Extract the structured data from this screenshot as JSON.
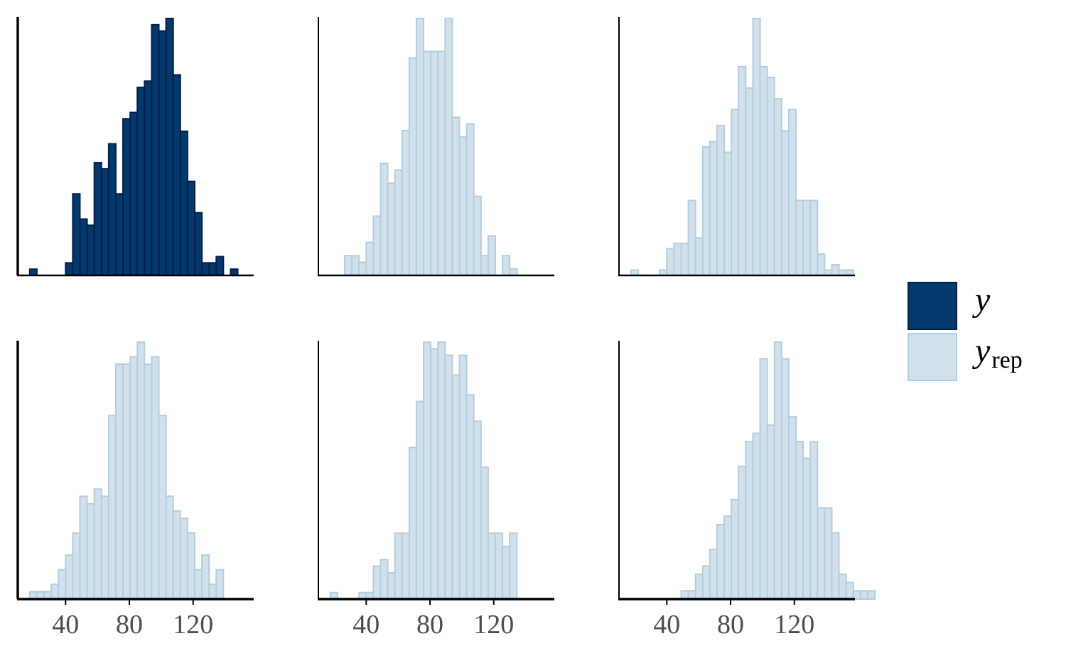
{
  "chart_data": {
    "type": "histogram-grid",
    "title": "",
    "xlabel": "",
    "ylabel": "",
    "xlim": [
      10,
      158
    ],
    "x_ticks": [
      40,
      80,
      120
    ],
    "x_tick_labels": [
      "40",
      "80",
      "120"
    ],
    "bin_width": 4.5,
    "bin_start": 17.5,
    "grid": false,
    "legend_position": "right",
    "legend": [
      {
        "symbol": "y",
        "subscript": "",
        "fill": "#03396c",
        "stroke": "#011f4b"
      },
      {
        "symbol": "y",
        "subscript": "rep",
        "fill": "#d1e1ec",
        "stroke": "#b3cde0"
      }
    ],
    "panels": [
      {
        "series": "y",
        "show_x_tick_labels": false,
        "counts": [
          1,
          0,
          0,
          0,
          0,
          2,
          13,
          9,
          8,
          18,
          17,
          21,
          13,
          25,
          26,
          30,
          31,
          40,
          39,
          41,
          32,
          23,
          15,
          10,
          2,
          2,
          3,
          0,
          1
        ]
      },
      {
        "series": "y_rep",
        "show_x_tick_labels": false,
        "counts": [
          0,
          0,
          3,
          3,
          2,
          5,
          9,
          17,
          14,
          16,
          22,
          33,
          39,
          34,
          34,
          34,
          39,
          24,
          21,
          23,
          12,
          3,
          6,
          0,
          3,
          1,
          0,
          0,
          0
        ]
      },
      {
        "series": "y_rep",
        "show_x_tick_labels": false,
        "counts": [
          1,
          0,
          0,
          0,
          1,
          5,
          6,
          6,
          14,
          7,
          24,
          25,
          28,
          23,
          31,
          39,
          35,
          48,
          39,
          37,
          33,
          27,
          31,
          14,
          14,
          14,
          4,
          1,
          2,
          1,
          1
        ]
      },
      {
        "series": "y_rep",
        "show_x_tick_labels": true,
        "counts": [
          1,
          1,
          1,
          2,
          4,
          6,
          9,
          14,
          13,
          15,
          14,
          25,
          32,
          32,
          33,
          35,
          32,
          33,
          25,
          14,
          12,
          11,
          9,
          4,
          6,
          2,
          4
        ]
      },
      {
        "series": "y_rep",
        "show_x_tick_labels": true,
        "counts": [
          1,
          0,
          0,
          0,
          1,
          1,
          5,
          6,
          4,
          10,
          10,
          23,
          30,
          39,
          38,
          39,
          37,
          34,
          37,
          31,
          27,
          20,
          10,
          10,
          8,
          10
        ]
      },
      {
        "series": "y_rep",
        "show_x_tick_labels": true,
        "counts": [
          0,
          0,
          0,
          0,
          0,
          0,
          0,
          1,
          1,
          3,
          4,
          6,
          9,
          10,
          12,
          16,
          19,
          20,
          29,
          21,
          31,
          29,
          22,
          19,
          17,
          19,
          11,
          11,
          8,
          3,
          2,
          1,
          1,
          1
        ]
      }
    ]
  }
}
